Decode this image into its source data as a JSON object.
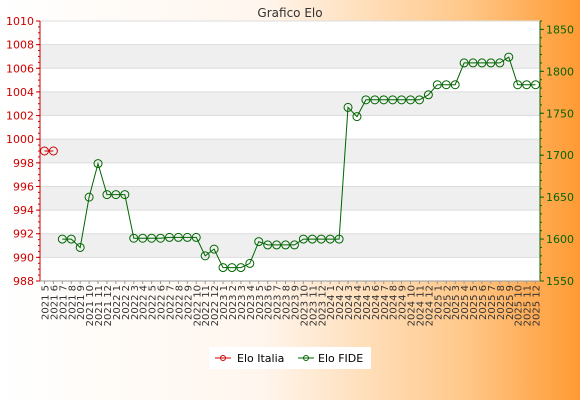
{
  "chart_data": {
    "type": "line",
    "title": "Grafico Elo",
    "categories": [
      "2021 5",
      "2021 6",
      "2021 7",
      "2021 8",
      "2021 9",
      "2021 10",
      "2021 11",
      "2021 12",
      "2022 1",
      "2022 2",
      "2022 3",
      "2022 4",
      "2022 5",
      "2022 6",
      "2022 7",
      "2022 8",
      "2022 9",
      "2022 10",
      "2022 11",
      "2022 12",
      "2023 1",
      "2023 2",
      "2023 3",
      "2023 4",
      "2023 5",
      "2023 6",
      "2023 7",
      "2023 8",
      "2023 9",
      "2023 10",
      "2023 11",
      "2023 12",
      "2024 1",
      "2024 2",
      "2024 3",
      "2024 4",
      "2024 5",
      "2024 6",
      "2024 7",
      "2024 8",
      "2024 9",
      "2024 10",
      "2024 11",
      "2024 12",
      "2025 1",
      "2025 2",
      "2025 3",
      "2025 4",
      "2025 5",
      "2025 6",
      "2025 7",
      "2025 8",
      "2025 9",
      "2025 10",
      "2025 11",
      "2025 12"
    ],
    "series": [
      {
        "name": "Elo Italia",
        "axis": "left",
        "color": "#cc0000",
        "values": [
          999,
          999,
          null,
          null,
          null,
          null,
          null,
          null,
          null,
          null,
          null,
          null,
          null,
          null,
          null,
          null,
          null,
          null,
          null,
          null,
          null,
          null,
          null,
          null,
          null,
          null,
          null,
          null,
          null,
          null,
          null,
          null,
          null,
          null,
          null,
          null,
          null,
          null,
          null,
          null,
          null,
          null,
          null,
          null,
          null,
          null,
          null,
          null,
          null,
          null,
          null,
          null,
          null,
          null,
          null,
          null
        ]
      },
      {
        "name": "Elo FIDE",
        "axis": "right",
        "color": "#006600",
        "values": [
          null,
          null,
          1600,
          1600,
          1590,
          1650,
          1690,
          1653,
          1653,
          1653,
          1601,
          1601,
          1601,
          1601,
          1602,
          1602,
          1602,
          1602,
          1580,
          1588,
          1566,
          1566,
          1566,
          1571,
          1597,
          1593,
          1593,
          1593,
          1593,
          1600,
          1600,
          1600,
          1600,
          1600,
          1757,
          1746,
          1766,
          1766,
          1766,
          1766,
          1766,
          1766,
          1766,
          1772,
          1784,
          1784,
          1784,
          1810,
          1810,
          1810,
          1810,
          1810,
          1817,
          1784,
          1784,
          1784
        ]
      }
    ],
    "y_left": {
      "ylim": [
        988,
        1010
      ],
      "ticks": [
        "988",
        "990",
        "992",
        "994",
        "996",
        "998",
        "1000",
        "1002",
        "1004",
        "1006",
        "1008",
        "1010"
      ],
      "color": "#cc0000"
    },
    "y_right": {
      "ylim": [
        1550,
        1860
      ],
      "ticks": [
        "1550",
        "1600",
        "1650",
        "1700",
        "1750",
        "1800",
        "1850"
      ],
      "color": "#006600"
    },
    "grid": true,
    "legend_placement": "bottom-center"
  }
}
